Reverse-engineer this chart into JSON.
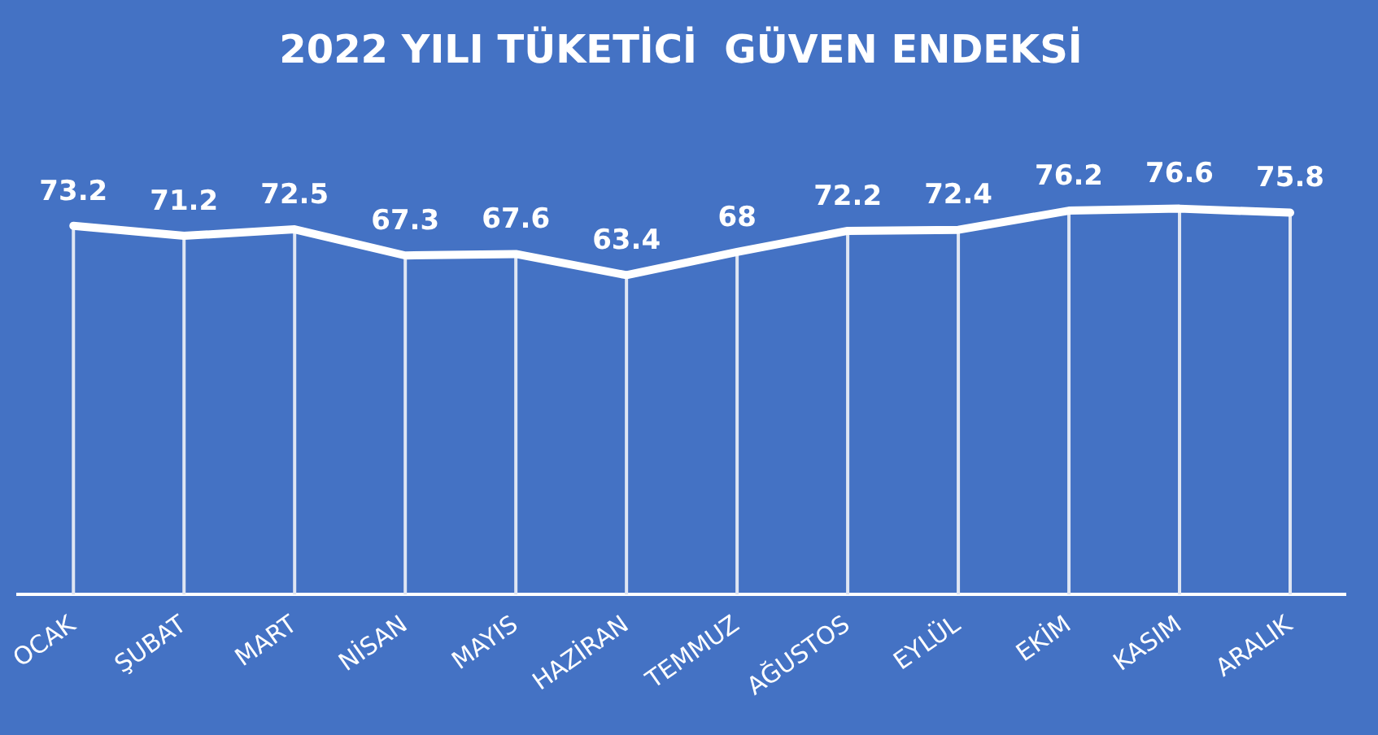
{
  "chart_data": {
    "type": "line",
    "title": "2022 YILI TÜKETİCİ  GÜVEN ENDEKSİ",
    "categories": [
      "OCAK",
      "ŞUBAT",
      "MART",
      "NİSAN",
      "MAYIS",
      "HAZİRAN",
      "TEMMUZ",
      "AĞUSTOS",
      "EYLÜL",
      "EKİM",
      "KASIM",
      "ARALIK"
    ],
    "series": [
      {
        "color": "#ffffff",
        "values": [
          73.2,
          71.2,
          72.5,
          67.3,
          67.6,
          63.4,
          68,
          72.2,
          72.4,
          76.2,
          76.6,
          75.8
        ]
      }
    ],
    "data_labels": true,
    "marker": "none",
    "legend": false,
    "grid": "x",
    "tick_labels": "x"
  }
}
